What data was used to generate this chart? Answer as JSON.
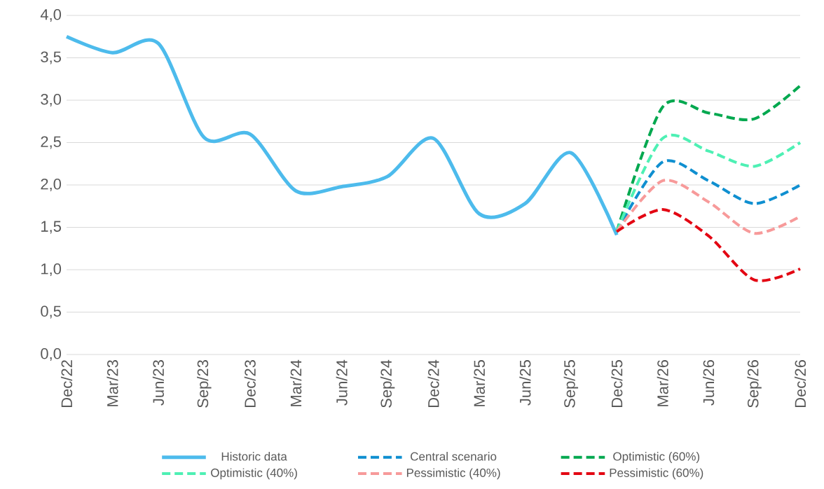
{
  "chart_data": {
    "type": "line",
    "categories": [
      "Dec/22",
      "Mar/23",
      "Jun/23",
      "Sep/23",
      "Dec/23",
      "Mar/24",
      "Jun/24",
      "Sep/24",
      "Dec/24",
      "Mar/25",
      "Jun/25",
      "Sep/25",
      "Dec/25",
      "Mar/26",
      "Jun/26",
      "Sep/26",
      "Dec/26"
    ],
    "series": [
      {
        "name": "Historic data",
        "color": "#4dbbec",
        "line_style": "solid",
        "values": [
          3.75,
          3.56,
          3.67,
          2.56,
          2.6,
          1.93,
          1.98,
          2.1,
          2.55,
          1.66,
          1.78,
          2.38,
          1.41,
          null,
          null,
          null,
          null
        ]
      },
      {
        "name": "Central scenario",
        "color": "#0f8fd0",
        "line_style": "dashed",
        "values": [
          null,
          null,
          null,
          null,
          null,
          null,
          null,
          null,
          null,
          null,
          null,
          null,
          1.45,
          2.27,
          2.05,
          1.78,
          2.0
        ]
      },
      {
        "name": "Optimistic (60%)",
        "color": "#00a84f",
        "line_style": "dashed",
        "values": [
          null,
          null,
          null,
          null,
          null,
          null,
          null,
          null,
          null,
          null,
          null,
          null,
          1.45,
          2.92,
          2.85,
          2.78,
          3.17
        ]
      },
      {
        "name": "Optimistic (40%)",
        "color": "#4ef0b4",
        "line_style": "dashed",
        "values": [
          null,
          null,
          null,
          null,
          null,
          null,
          null,
          null,
          null,
          null,
          null,
          null,
          1.45,
          2.55,
          2.4,
          2.22,
          2.5
        ]
      },
      {
        "name": "Pessimistic (40%)",
        "color": "#f79a9a",
        "line_style": "dashed",
        "values": [
          null,
          null,
          null,
          null,
          null,
          null,
          null,
          null,
          null,
          null,
          null,
          null,
          1.45,
          2.05,
          1.8,
          1.43,
          1.63
        ]
      },
      {
        "name": "Pessimistic (60%)",
        "color": "#e30613",
        "line_style": "dashed",
        "values": [
          null,
          null,
          null,
          null,
          null,
          null,
          null,
          null,
          null,
          null,
          null,
          null,
          1.45,
          1.71,
          1.4,
          0.88,
          1.01
        ]
      }
    ],
    "ylim": [
      0,
      4
    ],
    "yticks": [
      {
        "value": 0,
        "label": "0,0"
      },
      {
        "value": 0.5,
        "label": "0,5"
      },
      {
        "value": 1,
        "label": "1,0"
      },
      {
        "value": 1.5,
        "label": "1,5"
      },
      {
        "value": 2,
        "label": "2,0"
      },
      {
        "value": 2.5,
        "label": "2,5"
      },
      {
        "value": 3,
        "label": "3,0"
      },
      {
        "value": 3.5,
        "label": "3,5"
      },
      {
        "value": 4,
        "label": "4,0"
      }
    ],
    "grid": "y",
    "legend": "bottom",
    "marker": "none"
  }
}
